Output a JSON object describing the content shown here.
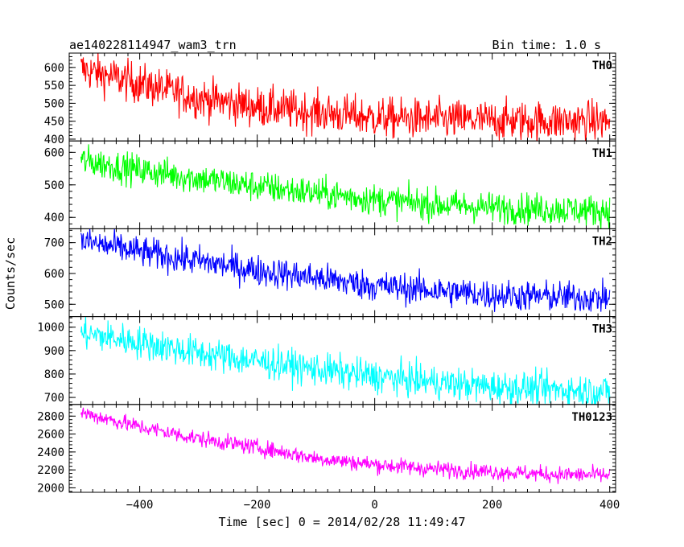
{
  "header": {
    "title": "ae140228114947_wam3_trn",
    "bin_time": "Bin time: 1.0 s"
  },
  "chart_data": {
    "type": "line",
    "xlabel": "Time [sec] 0 = 2014/02/28 11:49:47",
    "ylabel": "Counts/sec",
    "xlim": [
      -520,
      410
    ],
    "x_range": [
      -500,
      400
    ],
    "x_step": 1.0,
    "xticks": [
      -400,
      -200,
      0,
      200,
      400
    ],
    "grid": false,
    "panels": [
      {
        "name": "TH0",
        "color": "#ff0000",
        "ylim": [
          395,
          640
        ],
        "yticks": [
          400,
          450,
          500,
          550,
          600
        ],
        "trend": [
          [
            -500,
            595
          ],
          [
            -400,
            555
          ],
          [
            -300,
            515
          ],
          [
            -200,
            490
          ],
          [
            -100,
            475
          ],
          [
            0,
            460
          ],
          [
            100,
            455
          ],
          [
            200,
            452
          ],
          [
            300,
            450
          ],
          [
            400,
            450
          ]
        ],
        "noise": 28
      },
      {
        "name": "TH1",
        "color": "#00ff00",
        "ylim": [
          365,
          635
        ],
        "yticks": [
          400,
          500,
          600
        ],
        "trend": [
          [
            -500,
            575
          ],
          [
            -400,
            545
          ],
          [
            -300,
            520
          ],
          [
            -200,
            495
          ],
          [
            -100,
            475
          ],
          [
            0,
            455
          ],
          [
            100,
            440
          ],
          [
            200,
            430
          ],
          [
            300,
            425
          ],
          [
            400,
            420
          ]
        ],
        "noise": 24
      },
      {
        "name": "TH2",
        "color": "#0000ff",
        "ylim": [
          460,
          745
        ],
        "yticks": [
          500,
          600,
          700
        ],
        "trend": [
          [
            -500,
            705
          ],
          [
            -400,
            670
          ],
          [
            -300,
            640
          ],
          [
            -200,
            610
          ],
          [
            -100,
            585
          ],
          [
            0,
            560
          ],
          [
            100,
            545
          ],
          [
            200,
            530
          ],
          [
            300,
            525
          ],
          [
            400,
            520
          ]
        ],
        "noise": 25
      },
      {
        "name": "TH3",
        "color": "#00ffff",
        "ylim": [
          670,
          1045
        ],
        "yticks": [
          700,
          800,
          900,
          1000
        ],
        "trend": [
          [
            -500,
            975
          ],
          [
            -400,
            935
          ],
          [
            -300,
            890
          ],
          [
            -200,
            855
          ],
          [
            -100,
            820
          ],
          [
            0,
            790
          ],
          [
            100,
            765
          ],
          [
            200,
            745
          ],
          [
            300,
            735
          ],
          [
            400,
            725
          ]
        ],
        "noise": 35
      },
      {
        "name": "TH0123",
        "color": "#ff00ff",
        "ylim": [
          1950,
          2930
        ],
        "yticks": [
          2000,
          2200,
          2400,
          2600,
          2800
        ],
        "trend": [
          [
            -500,
            2840
          ],
          [
            -400,
            2680
          ],
          [
            -300,
            2550
          ],
          [
            -200,
            2450
          ],
          [
            -100,
            2330
          ],
          [
            0,
            2260
          ],
          [
            100,
            2210
          ],
          [
            200,
            2180
          ],
          [
            300,
            2150
          ],
          [
            400,
            2140
          ]
        ],
        "noise": 45
      }
    ]
  }
}
